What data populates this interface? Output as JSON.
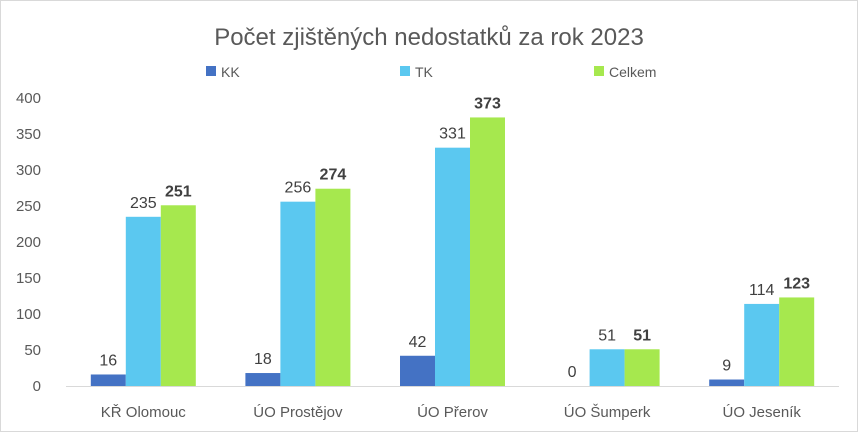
{
  "chart_data": {
    "type": "bar",
    "title": "Počet zjištěných  nedostatků za rok 2023",
    "categories": [
      "KŘ Olomouc",
      "ÚO Prostějov",
      "ÚO Přerov",
      "ÚO Šumperk",
      "ÚO Jeseník"
    ],
    "series": [
      {
        "name": "KK",
        "color": "#4472c4",
        "values": [
          16,
          18,
          42,
          0,
          9
        ]
      },
      {
        "name": "TK",
        "color": "#5bc8f0",
        "values": [
          235,
          256,
          331,
          51,
          114
        ]
      },
      {
        "name": "Celkem",
        "color": "#a6e84e",
        "values": [
          251,
          274,
          373,
          51,
          123
        ]
      }
    ],
    "ylim": [
      0,
      400
    ],
    "yticks": [
      0,
      50,
      100,
      150,
      200,
      250,
      300,
      350,
      400
    ],
    "grid": false,
    "legend": "top",
    "data_labels": true,
    "bold_series": "Celkem"
  }
}
